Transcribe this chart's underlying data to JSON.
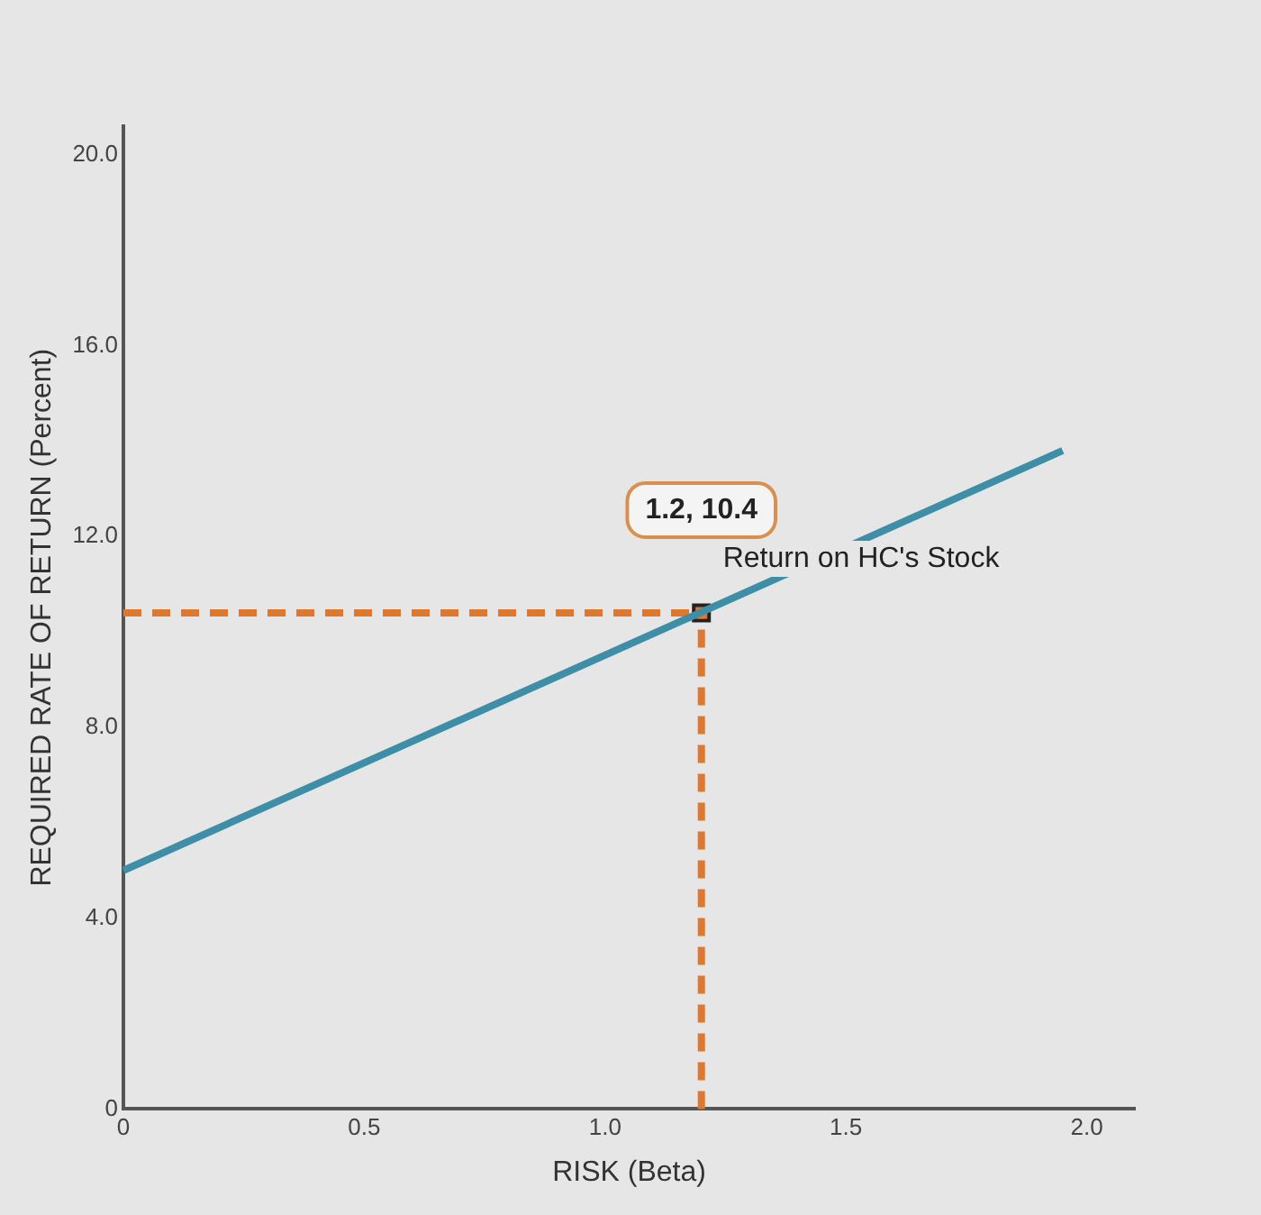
{
  "chart_data": {
    "type": "line",
    "xlabel": "RISK (Beta)",
    "ylabel": "REQUIRED RATE OF RETURN (Percent)",
    "xlim": [
      0,
      2.1
    ],
    "ylim": [
      0,
      20.6
    ],
    "xticks": [
      0,
      {
        "value": 0.5,
        "label": "0.5"
      },
      {
        "value": 1,
        "label": "1.0"
      },
      {
        "value": 1.5,
        "label": "1.5"
      },
      {
        "value": 2,
        "label": "2.0"
      }
    ],
    "yticks": [
      0,
      {
        "value": 4,
        "label": "4.0"
      },
      {
        "value": 8,
        "label": "8.0"
      },
      {
        "value": 12,
        "label": "12.0"
      },
      {
        "value": 16,
        "label": "16.0"
      },
      {
        "value": 20,
        "label": "20.0"
      }
    ],
    "grid": false,
    "legend": false,
    "marker": "none",
    "series": [
      {
        "color": "#3f8ea8",
        "x": [
          0,
          1.95
        ],
        "values": [
          5.0,
          13.8
        ],
        "line_style": "solid"
      },
      {
        "color": "#e0772e",
        "x": [
          0,
          1.2
        ],
        "values": [
          10.4,
          10.4
        ],
        "line_style": "dashed"
      },
      {
        "color": "#e0772e",
        "x": [
          1.2,
          1.2
        ],
        "values": [
          0,
          10.4
        ],
        "line_style": "dashed"
      },
      {
        "type": "scatter",
        "color": "#e0772e",
        "x": [
          1.2
        ],
        "values": [
          10.4
        ],
        "marker": "square"
      }
    ],
    "annotations": [
      "1.2, 10.4",
      {
        "text": "Return on HC's Stock",
        "x": 1.2,
        "y": 10.4
      }
    ]
  }
}
